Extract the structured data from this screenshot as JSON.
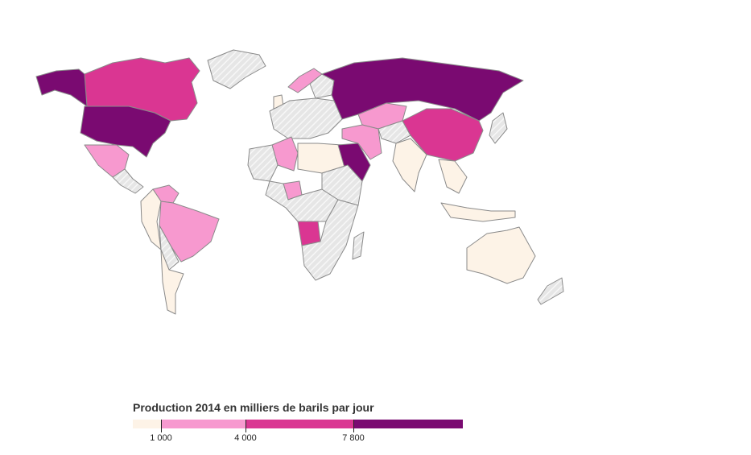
{
  "legend": {
    "title": "Production 2014 en milliers de barils par jour",
    "bins": [
      {
        "color": "#fdf3e7"
      },
      {
        "color": "#f799cf"
      },
      {
        "color": "#da3692"
      },
      {
        "color": "#7a0a71"
      }
    ],
    "breaks": [
      "1 000",
      "4 000",
      "7 800"
    ]
  },
  "colors": {
    "no_data_fill": "#e6e6e6",
    "no_data_hatch": "#f7f7f7",
    "border": "#8a8a8a"
  },
  "regions": [
    {
      "name": "canada",
      "bin": 2
    },
    {
      "name": "alaska",
      "bin": 3
    },
    {
      "name": "greenland",
      "bin": -1
    },
    {
      "name": "usa",
      "bin": 3
    },
    {
      "name": "mexico",
      "bin": 1
    },
    {
      "name": "central-america",
      "bin": -1
    },
    {
      "name": "venezuela",
      "bin": 1
    },
    {
      "name": "colombia-peru",
      "bin": 0
    },
    {
      "name": "brazil",
      "bin": 1
    },
    {
      "name": "bolivia-paraguay",
      "bin": -1
    },
    {
      "name": "argentina-chile",
      "bin": 0
    },
    {
      "name": "norway",
      "bin": 1
    },
    {
      "name": "sweden-finland",
      "bin": -1
    },
    {
      "name": "uk",
      "bin": 0
    },
    {
      "name": "europe",
      "bin": -1
    },
    {
      "name": "russia",
      "bin": 3
    },
    {
      "name": "kazakhstan",
      "bin": 1
    },
    {
      "name": "central-asia",
      "bin": -1
    },
    {
      "name": "algeria",
      "bin": 1
    },
    {
      "name": "libya-egypt",
      "bin": 0
    },
    {
      "name": "sahara-west",
      "bin": -1
    },
    {
      "name": "saudi-arabia",
      "bin": 3
    },
    {
      "name": "iraq-iran",
      "bin": 1
    },
    {
      "name": "nigeria",
      "bin": 1
    },
    {
      "name": "angola",
      "bin": 2
    },
    {
      "name": "central-africa",
      "bin": -1
    },
    {
      "name": "east-africa",
      "bin": -1
    },
    {
      "name": "southern-africa",
      "bin": -1
    },
    {
      "name": "madagascar",
      "bin": -1
    },
    {
      "name": "china",
      "bin": 2
    },
    {
      "name": "india",
      "bin": 0
    },
    {
      "name": "southeast-asia",
      "bin": 0
    },
    {
      "name": "indonesia",
      "bin": 0
    },
    {
      "name": "japan",
      "bin": -1
    },
    {
      "name": "australia",
      "bin": 0
    },
    {
      "name": "new-zealand",
      "bin": -1
    }
  ]
}
